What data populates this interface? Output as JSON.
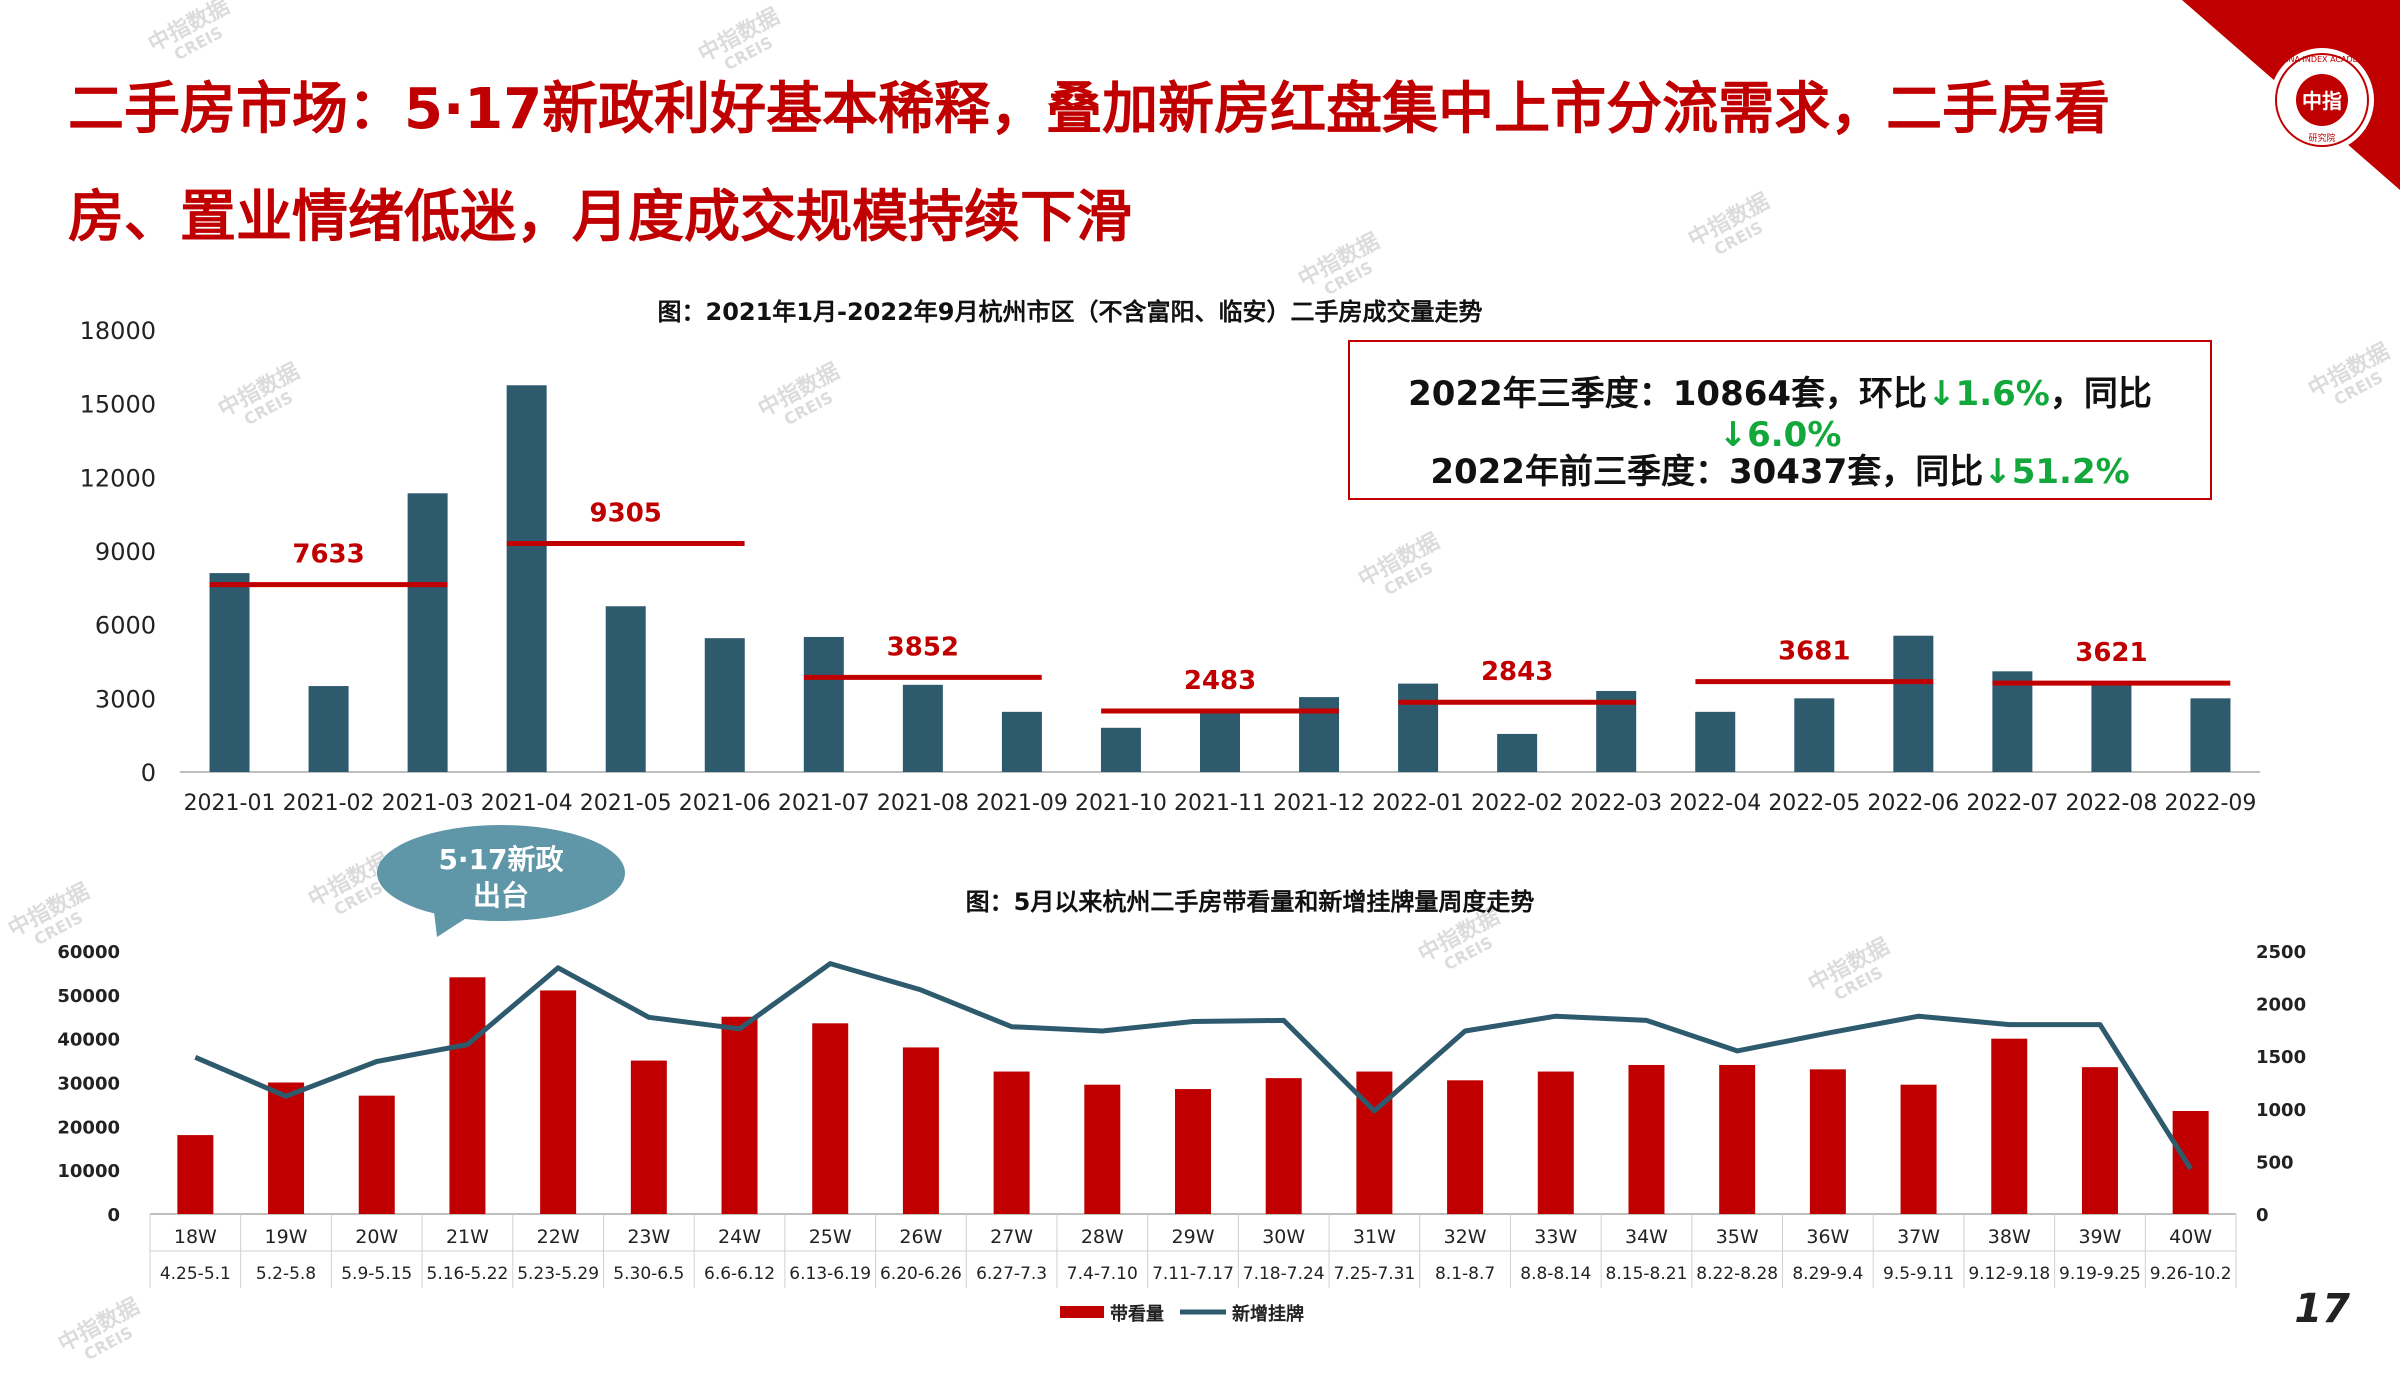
{
  "slide": {
    "title": "二手房市场：5·17新政利好基本稀释，叠加新房红盘集中上市分流需求，二手房看房、置业情绪低迷，月度成交规模持续下滑",
    "page_number": "17",
    "logo_text": "中指",
    "logo_subtext": "研究院",
    "logo_ring": "CHINA INDEX ACADEMY",
    "watermark_text": "中指数据",
    "watermark_sub": "CREIS"
  },
  "summary": {
    "line1_prefix": "2022年三季度：10864套，环比",
    "line1_qoq": "↓1.6%",
    "line1_mid": "，同比",
    "line1_yoy": "↓6.0%",
    "line2_prefix": "2022年前三季度：30437套，同比",
    "line2_yoy": "↓51.2%"
  },
  "bubble": {
    "line1": "5·17新政",
    "line2": "出台"
  },
  "colors": {
    "title_red": "#c00000",
    "bar_blue": "#2e5a6e",
    "bar_red": "#c00000",
    "line_blue": "#2e5a6e",
    "avg_red": "#c00000",
    "bubble": "#5f97a8",
    "green": "#12a83c"
  },
  "chart_data": [
    {
      "type": "bar",
      "title": "图：2021年1月-2022年9月杭州市区（不含富阳、临安）二手房成交量走势",
      "categories": [
        "2021-01",
        "2021-02",
        "2021-03",
        "2021-04",
        "2021-05",
        "2021-06",
        "2021-07",
        "2021-08",
        "2021-09",
        "2021-10",
        "2021-11",
        "2021-12",
        "2022-01",
        "2022-02",
        "2022-03",
        "2022-04",
        "2022-05",
        "2022-06",
        "2022-07",
        "2022-08",
        "2022-09"
      ],
      "values": [
        8100,
        3500,
        11350,
        15750,
        6750,
        5450,
        5500,
        3550,
        2450,
        1800,
        2450,
        3050,
        3600,
        1550,
        3300,
        2450,
        3000,
        5550,
        4100,
        3650,
        3000
      ],
      "ylim": [
        0,
        18000
      ],
      "yticks": [
        0,
        3000,
        6000,
        9000,
        12000,
        15000,
        18000
      ],
      "quarter_averages": [
        {
          "start": 0,
          "end": 2,
          "value": 7633,
          "label": "7633"
        },
        {
          "start": 3,
          "end": 5,
          "value": 9305,
          "label": "9305"
        },
        {
          "start": 6,
          "end": 8,
          "value": 3852,
          "label": "3852"
        },
        {
          "start": 9,
          "end": 11,
          "value": 2483,
          "label": "2483"
        },
        {
          "start": 12,
          "end": 14,
          "value": 2843,
          "label": "2843"
        },
        {
          "start": 15,
          "end": 17,
          "value": 3681,
          "label": "3681"
        },
        {
          "start": 18,
          "end": 20,
          "value": 3621,
          "label": "3621"
        }
      ]
    },
    {
      "type": "bar+line",
      "title": "图：5月以来杭州二手房带看量和新增挂牌量周度走势",
      "weeks": [
        "18W",
        "19W",
        "20W",
        "21W",
        "22W",
        "23W",
        "24W",
        "25W",
        "26W",
        "27W",
        "28W",
        "29W",
        "30W",
        "31W",
        "32W",
        "33W",
        "34W",
        "35W",
        "36W",
        "37W",
        "38W",
        "39W",
        "40W"
      ],
      "dates": [
        "4.25-5.1",
        "5.2-5.8",
        "5.9-5.15",
        "5.16-5.22",
        "5.23-5.29",
        "5.30-6.5",
        "6.6-6.12",
        "6.13-6.19",
        "6.20-6.26",
        "6.27-7.3",
        "7.4-7.10",
        "7.11-7.17",
        "7.18-7.24",
        "7.25-7.31",
        "8.1-8.7",
        "8.8-8.14",
        "8.15-8.21",
        "8.22-8.28",
        "8.29-9.4",
        "9.5-9.11",
        "9.12-9.18",
        "9.19-9.25",
        "9.26-10.2"
      ],
      "series": [
        {
          "name": "带看量",
          "type": "bar",
          "axis": "left",
          "values": [
            18000,
            30000,
            27000,
            54000,
            51000,
            35000,
            45000,
            43500,
            38000,
            32500,
            29500,
            28500,
            31000,
            32500,
            30500,
            32500,
            34000,
            34000,
            33000,
            29500,
            40000,
            33500,
            23500
          ]
        },
        {
          "name": "新增挂牌",
          "type": "line",
          "axis": "right",
          "values": [
            1490,
            1120,
            1450,
            1610,
            2340,
            1870,
            1760,
            2380,
            2130,
            1780,
            1740,
            1830,
            1840,
            980,
            1740,
            1880,
            1840,
            1550,
            1720,
            1880,
            1800,
            1800,
            430
          ]
        }
      ],
      "y_left": {
        "min": 0,
        "max": 60000,
        "ticks": [
          0,
          10000,
          20000,
          30000,
          40000,
          50000,
          60000
        ]
      },
      "y_right": {
        "min": 0,
        "max": 2500,
        "ticks": [
          0,
          500,
          1000,
          1500,
          2000,
          2500
        ]
      },
      "legend": {
        "bar": "带看量",
        "line": "新增挂牌"
      }
    }
  ]
}
